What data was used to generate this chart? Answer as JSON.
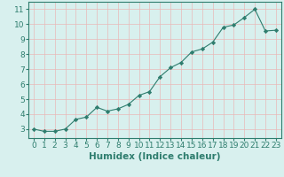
{
  "x": [
    0,
    1,
    2,
    3,
    4,
    5,
    6,
    7,
    8,
    9,
    10,
    11,
    12,
    13,
    14,
    15,
    16,
    17,
    18,
    19,
    20,
    21,
    22,
    23
  ],
  "y": [
    3.0,
    2.85,
    2.85,
    3.0,
    3.65,
    3.8,
    4.45,
    4.2,
    4.35,
    4.65,
    5.25,
    5.5,
    6.5,
    7.1,
    7.45,
    8.15,
    8.35,
    8.8,
    9.8,
    9.95,
    10.45,
    11.0,
    9.55,
    9.6
  ],
  "xlabel": "Humidex (Indice chaleur)",
  "xlim": [
    -0.5,
    23.5
  ],
  "ylim": [
    2.4,
    11.5
  ],
  "yticks": [
    3,
    4,
    5,
    6,
    7,
    8,
    9,
    10,
    11
  ],
  "xticks": [
    0,
    1,
    2,
    3,
    4,
    5,
    6,
    7,
    8,
    9,
    10,
    11,
    12,
    13,
    14,
    15,
    16,
    17,
    18,
    19,
    20,
    21,
    22,
    23
  ],
  "line_color": "#2e7d6e",
  "marker": "D",
  "marker_size": 2.2,
  "bg_color": "#d8f0ee",
  "grid_color": "#e8b8b8",
  "xlabel_fontsize": 7.5,
  "tick_fontsize": 6.5
}
